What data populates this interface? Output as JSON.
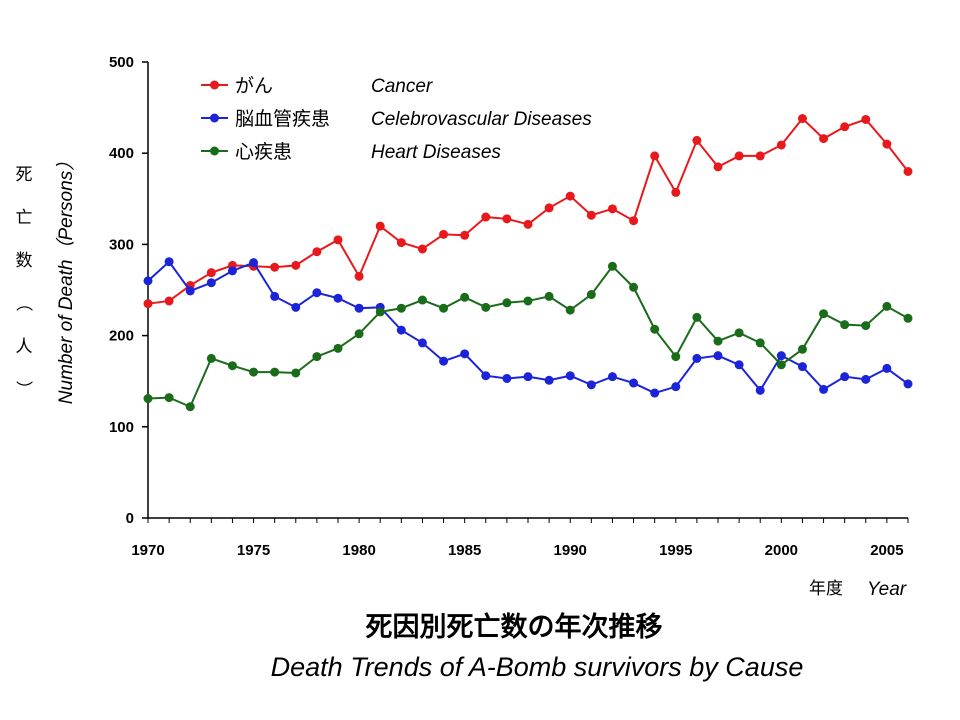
{
  "chart_data": {
    "type": "line",
    "title": "死因別死亡数の年次推移",
    "subtitle": "Death Trends of A-Bomb survivors by Cause",
    "xlabel_ja": "年度",
    "xlabel_en": "Year",
    "ylabel_ja": [
      "死",
      "亡",
      "数",
      "（",
      "人",
      "）"
    ],
    "ylabel_en": "Number of Death（Persons）",
    "xlim": [
      1970,
      2006
    ],
    "ylim": [
      0,
      500
    ],
    "x_ticks": [
      1970,
      1975,
      1980,
      1985,
      1990,
      1995,
      2000,
      2005
    ],
    "y_ticks": [
      0,
      100,
      200,
      300,
      400,
      500
    ],
    "grid": false,
    "legend_position": "top-left",
    "x": [
      1970,
      1971,
      1972,
      1973,
      1974,
      1975,
      1976,
      1977,
      1978,
      1979,
      1980,
      1981,
      1982,
      1983,
      1984,
      1985,
      1986,
      1987,
      1988,
      1989,
      1990,
      1991,
      1992,
      1993,
      1994,
      1995,
      1996,
      1997,
      1998,
      1999,
      2000,
      2001,
      2002,
      2003,
      2004,
      2005,
      2006
    ],
    "series": [
      {
        "name_ja": "がん",
        "name_en": "Cancer",
        "color": "#e8191c",
        "values": [
          235,
          238,
          255,
          269,
          277,
          276,
          275,
          277,
          292,
          305,
          265,
          320,
          302,
          295,
          311,
          310,
          330,
          328,
          322,
          340,
          353,
          332,
          339,
          326,
          397,
          357,
          414,
          385,
          397,
          397,
          409,
          438,
          416,
          429,
          437,
          410,
          380
        ]
      },
      {
        "name_ja": "脳血管疾患",
        "name_en": "Celebrovascular Diseases",
        "color": "#1c24d8",
        "values": [
          260,
          281,
          249,
          258,
          271,
          280,
          243,
          231,
          247,
          241,
          230,
          231,
          206,
          192,
          172,
          180,
          156,
          153,
          155,
          151,
          156,
          146,
          155,
          148,
          137,
          144,
          175,
          178,
          168,
          140,
          178,
          166,
          141,
          155,
          152,
          164,
          147
        ]
      },
      {
        "name_ja": "心疾患",
        "name_en": "Heart Diseases",
        "color": "#1a6b1a",
        "values": [
          131,
          132,
          122,
          175,
          167,
          160,
          160,
          159,
          177,
          186,
          202,
          226,
          230,
          239,
          230,
          242,
          231,
          236,
          238,
          243,
          228,
          245,
          276,
          253,
          207,
          177,
          220,
          194,
          203,
          192,
          168,
          185,
          224,
          212,
          211,
          232,
          219
        ]
      }
    ]
  }
}
